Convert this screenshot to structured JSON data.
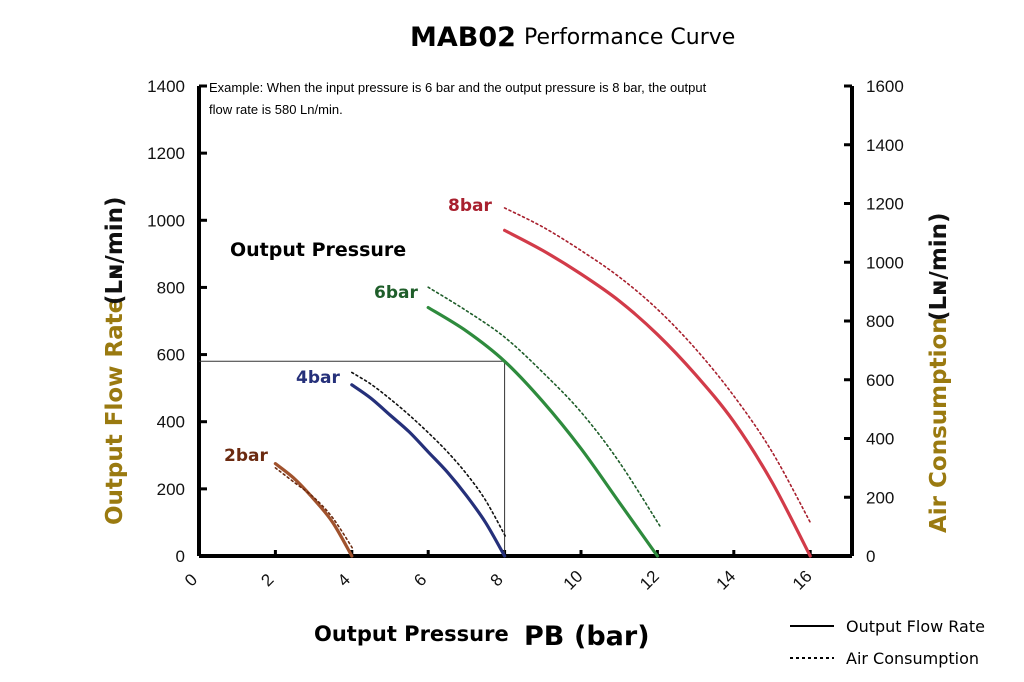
{
  "title": {
    "main": "MAB02",
    "sub": "Performance Curve"
  },
  "note_line1": "Example: When the input pressure is 6 bar and the output pressure is 8 bar, the output",
  "note_line2": "flow rate is 580 Ln/min.",
  "chart_data": {
    "type": "line",
    "xlabel_main": "Output Pressure",
    "xlabel_pb": "PB",
    "xlabel_unit": "(bar)",
    "ylabel_left_main": "Output Flow Rate",
    "ylabel_left_unit": "(Lɴ/min)",
    "ylabel_right_main": "Air Consumption",
    "ylabel_right_unit": "(Lɴ/min)",
    "annotation_output_pressure": "Output Pressure",
    "xlim": [
      0,
      17
    ],
    "ylim_left": [
      0,
      1400
    ],
    "ylim_right": [
      0,
      1600
    ],
    "x_ticks": [
      "0",
      "2",
      "4",
      "6",
      "8",
      "10",
      "12",
      "14",
      "16"
    ],
    "y_left_ticks": [
      "0",
      "200",
      "400",
      "600",
      "800",
      "1000",
      "1200",
      "1400"
    ],
    "y_right_ticks": [
      "0",
      "200",
      "400",
      "600",
      "800",
      "1000",
      "1200",
      "1400",
      "1600"
    ],
    "legend": [
      {
        "label": "Output Flow Rate",
        "style": "solid"
      },
      {
        "label": "Air Consumption",
        "style": "dotted"
      }
    ],
    "series": [
      {
        "name": "2bar",
        "color": "#a0522d",
        "type": "flow",
        "points": [
          [
            2,
            275
          ],
          [
            2.5,
            230
          ],
          [
            3,
            170
          ],
          [
            3.5,
            100
          ],
          [
            4,
            0
          ]
        ]
      },
      {
        "name": "2bar",
        "color": "#6b2a10",
        "type": "air",
        "points": [
          [
            2,
            300
          ],
          [
            2.5,
            250
          ],
          [
            3,
            200
          ],
          [
            3.5,
            130
          ],
          [
            4.05,
            20
          ]
        ]
      },
      {
        "name": "4bar",
        "color": "#25307a",
        "type": "flow",
        "points": [
          [
            4,
            510
          ],
          [
            4.5,
            470
          ],
          [
            5,
            420
          ],
          [
            5.5,
            370
          ],
          [
            6,
            310
          ],
          [
            6.5,
            250
          ],
          [
            7,
            180
          ],
          [
            7.5,
            100
          ],
          [
            8,
            0
          ]
        ]
      },
      {
        "name": "4bar",
        "color": "#111111",
        "type": "air",
        "points": [
          [
            4,
            625
          ],
          [
            4.5,
            585
          ],
          [
            5,
            535
          ],
          [
            5.5,
            480
          ],
          [
            6,
            420
          ],
          [
            6.5,
            355
          ],
          [
            7,
            280
          ],
          [
            7.5,
            190
          ],
          [
            8.05,
            60
          ]
        ]
      },
      {
        "name": "6bar",
        "color": "#2e8b3d",
        "type": "flow",
        "points": [
          [
            6,
            740
          ],
          [
            7,
            670
          ],
          [
            8,
            580
          ],
          [
            9,
            460
          ],
          [
            10,
            320
          ],
          [
            11,
            160
          ],
          [
            12,
            0
          ]
        ]
      },
      {
        "name": "6bar",
        "color": "#1f5e2a",
        "type": "air",
        "points": [
          [
            6,
            915
          ],
          [
            7,
            835
          ],
          [
            8,
            745
          ],
          [
            9,
            625
          ],
          [
            10,
            490
          ],
          [
            11,
            320
          ],
          [
            12.1,
            95
          ]
        ]
      },
      {
        "name": "8bar",
        "color": "#d23b49",
        "type": "flow",
        "points": [
          [
            8,
            970
          ],
          [
            9,
            910
          ],
          [
            10,
            840
          ],
          [
            11,
            760
          ],
          [
            12,
            660
          ],
          [
            13,
            540
          ],
          [
            14,
            400
          ],
          [
            15,
            220
          ],
          [
            16,
            0
          ]
        ]
      },
      {
        "name": "8bar",
        "color": "#a8202e",
        "type": "air",
        "points": [
          [
            8,
            1185
          ],
          [
            9,
            1120
          ],
          [
            10,
            1040
          ],
          [
            11,
            950
          ],
          [
            12,
            840
          ],
          [
            13,
            705
          ],
          [
            14,
            545
          ],
          [
            15,
            355
          ],
          [
            16,
            115
          ]
        ]
      }
    ],
    "example_point": {
      "x": 8,
      "y": 580
    }
  }
}
